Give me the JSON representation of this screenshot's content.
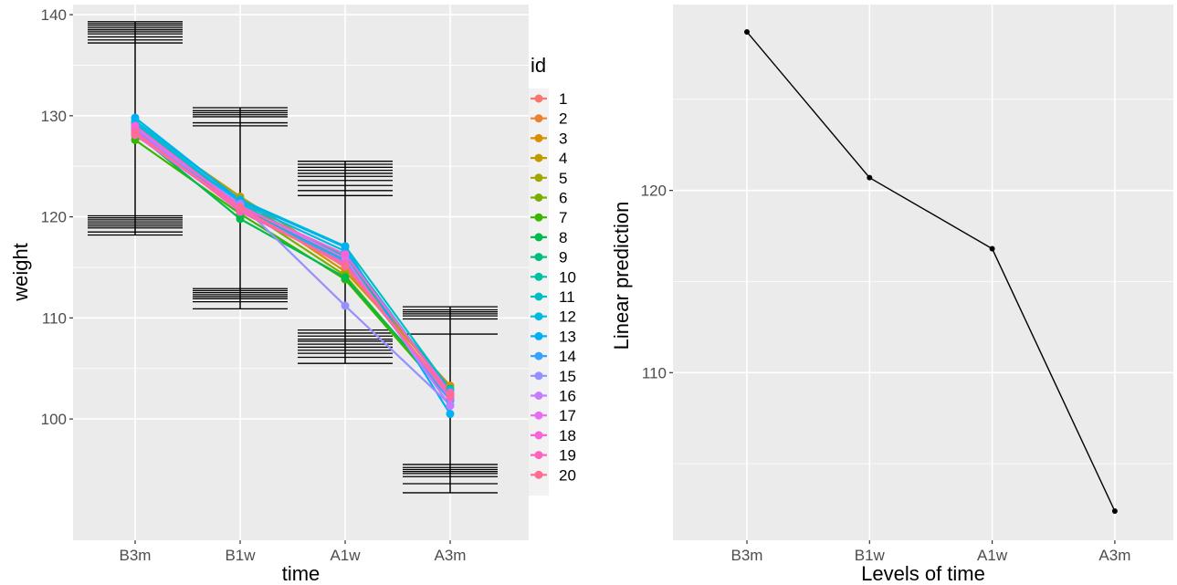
{
  "chart_data": [
    {
      "type": "line",
      "xlabel": "time",
      "ylabel": "weight",
      "categories": [
        "B3m",
        "B1w",
        "A1w",
        "A3m"
      ],
      "ylim": [
        88,
        141
      ],
      "yticks": [
        "100",
        "110",
        "120",
        "130",
        "140"
      ],
      "ytick_values": [
        100,
        110,
        120,
        130,
        140
      ],
      "grid": true,
      "legend": {
        "title": "id",
        "position": "right"
      },
      "series": [
        {
          "name": "1",
          "color": "#F8766D",
          "values": [
            128.5,
            120.6,
            115.9,
            102.6
          ]
        },
        {
          "name": "2",
          "color": "#EA8331",
          "values": [
            129.0,
            121.1,
            115.3,
            102.2
          ]
        },
        {
          "name": "3",
          "color": "#D89000",
          "values": [
            128.2,
            121.5,
            114.6,
            103.3
          ]
        },
        {
          "name": "4",
          "color": "#C09B00",
          "values": [
            129.2,
            122.0,
            115.5,
            102.8
          ]
        },
        {
          "name": "5",
          "color": "#A3A500",
          "values": [
            128.0,
            121.8,
            115.0,
            102.4
          ]
        },
        {
          "name": "6",
          "color": "#7CAE00",
          "values": [
            128.7,
            121.0,
            114.2,
            102.0
          ]
        },
        {
          "name": "7",
          "color": "#39B600",
          "values": [
            127.6,
            120.3,
            113.8,
            101.9
          ]
        },
        {
          "name": "8",
          "color": "#00BB4E",
          "values": [
            128.3,
            119.8,
            114.0,
            102.3
          ]
        },
        {
          "name": "9",
          "color": "#00BF7D",
          "values": [
            128.9,
            120.9,
            115.8,
            103.0
          ]
        },
        {
          "name": "10",
          "color": "#00C1A3",
          "values": [
            129.1,
            121.2,
            116.1,
            102.7
          ]
        },
        {
          "name": "11",
          "color": "#00BFC4",
          "values": [
            129.5,
            121.7,
            117.1,
            102.9
          ]
        },
        {
          "name": "12",
          "color": "#00BAE0",
          "values": [
            129.3,
            121.4,
            116.6,
            102.5
          ]
        },
        {
          "name": "13",
          "color": "#00B0F6",
          "values": [
            129.8,
            121.6,
            117.0,
            100.5
          ]
        },
        {
          "name": "14",
          "color": "#35A2FF",
          "values": [
            128.6,
            120.8,
            115.6,
            101.8
          ]
        },
        {
          "name": "15",
          "color": "#9590FF",
          "values": [
            128.4,
            121.3,
            111.2,
            101.4
          ]
        },
        {
          "name": "16",
          "color": "#C77CFF",
          "values": [
            128.8,
            121.1,
            115.9,
            101.3
          ]
        },
        {
          "name": "17",
          "color": "#E76BF3",
          "values": [
            128.1,
            120.7,
            115.2,
            102.1
          ]
        },
        {
          "name": "18",
          "color": "#FA62DB",
          "values": [
            129.0,
            121.0,
            116.3,
            102.6
          ]
        },
        {
          "name": "19",
          "color": "#FF62BC",
          "values": [
            128.5,
            120.5,
            115.4,
            102.2
          ]
        },
        {
          "name": "20",
          "color": "#FF6C91",
          "values": [
            128.2,
            120.9,
            115.1,
            102.4
          ]
        }
      ],
      "error_bars": [
        {
          "category": "B3m",
          "low": 118.2,
          "high": 139.3
        },
        {
          "category": "B1w",
          "low": 110.9,
          "high": 130.8
        },
        {
          "category": "A1w",
          "low": 105.5,
          "high": 125.5
        },
        {
          "category": "A3m",
          "low": 92.7,
          "high": 111.1
        }
      ],
      "caps": {
        "B3m": [
          118.2,
          118.5,
          118.9,
          119.1,
          119.3,
          119.5,
          119.7,
          119.9,
          120.1,
          137.2,
          137.5,
          137.8,
          138.1,
          138.3,
          138.5,
          138.7,
          138.9,
          139.1,
          139.3
        ],
        "B1w": [
          110.9,
          111.6,
          111.9,
          112.1,
          112.3,
          112.5,
          112.7,
          112.9,
          129.0,
          129.3,
          129.9,
          130.1,
          130.3,
          130.5,
          130.8
        ],
        "A1w": [
          105.5,
          106.1,
          106.5,
          106.8,
          107.1,
          107.4,
          107.7,
          107.9,
          108.2,
          108.5,
          108.8,
          122.1,
          122.6,
          123.1,
          123.6,
          124.0,
          124.3,
          124.6,
          124.9,
          125.2,
          125.5
        ],
        "A3m": [
          92.7,
          93.6,
          94.3,
          94.6,
          94.8,
          95.0,
          95.2,
          95.5,
          108.4,
          109.9,
          110.2,
          110.4,
          110.6,
          110.8,
          111.1
        ]
      }
    },
    {
      "type": "line",
      "xlabel": "Levels of time",
      "ylabel": "Linear prediction",
      "categories": [
        "B3m",
        "B1w",
        "A1w",
        "A3m"
      ],
      "values": [
        128.7,
        120.7,
        116.8,
        102.4
      ],
      "ylim": [
        100.8,
        130.2
      ],
      "yticks": [
        "110",
        "120"
      ],
      "ytick_values": [
        110,
        120
      ],
      "grid": true,
      "color": "#000000"
    }
  ]
}
